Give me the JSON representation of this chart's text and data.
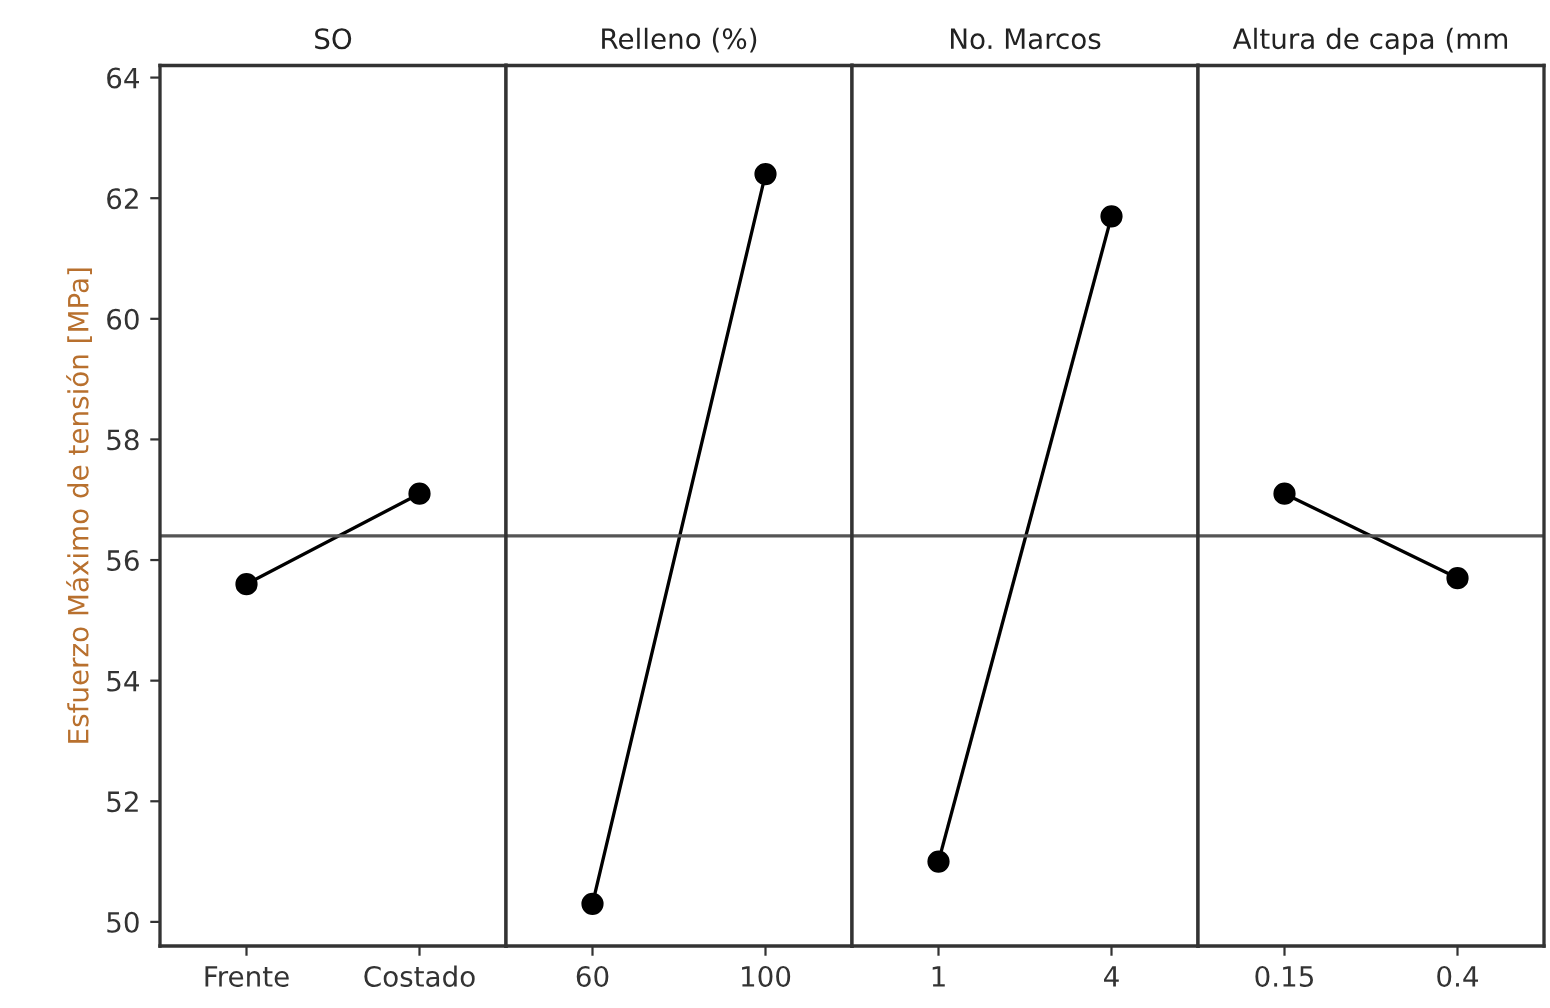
{
  "chart_data": [
    {
      "type": "line",
      "title": "SO",
      "ylabel": "Esfuerzo Máximo de tensión [MPa]",
      "categories": [
        "Frente",
        "Costado"
      ],
      "series": [
        {
          "color": "#000000",
          "values": [
            55.6,
            57.1
          ]
        }
      ],
      "ylim": [
        49.6,
        64.2
      ],
      "yticks": [
        50,
        52,
        54,
        56,
        58,
        60,
        62,
        64
      ],
      "ref_lines": [
        {
          "axis": "y",
          "value": 56.4,
          "color": "#555555"
        }
      ],
      "marker": "circle",
      "line_style": "solid",
      "grid": false,
      "legend": false
    },
    {
      "type": "line",
      "title": "Relleno (%)",
      "categories": [
        "60",
        "100"
      ],
      "series": [
        {
          "color": "#000000",
          "values": [
            50.3,
            62.4
          ]
        }
      ],
      "ylim": [
        49.6,
        64.2
      ],
      "tick_labels": "x",
      "ref_lines": [
        {
          "axis": "y",
          "value": 56.4,
          "color": "#555555"
        }
      ],
      "marker": "circle",
      "line_style": "solid",
      "grid": false,
      "legend": false
    },
    {
      "type": "line",
      "title": "No. Marcos",
      "categories": [
        "1",
        "4"
      ],
      "series": [
        {
          "color": "#000000",
          "values": [
            51.0,
            61.7
          ]
        }
      ],
      "ylim": [
        49.6,
        64.2
      ],
      "tick_labels": "x",
      "ref_lines": [
        {
          "axis": "y",
          "value": 56.4,
          "color": "#555555"
        }
      ],
      "marker": "circle",
      "line_style": "solid",
      "grid": false,
      "legend": false
    },
    {
      "type": "line",
      "title": "Altura de capa (mm",
      "categories": [
        "0.15",
        "0.4"
      ],
      "series": [
        {
          "color": "#000000",
          "values": [
            57.1,
            55.7
          ]
        }
      ],
      "ylim": [
        49.6,
        64.2
      ],
      "tick_labels": "x",
      "ref_lines": [
        {
          "axis": "y",
          "value": 56.4,
          "color": "#555555"
        }
      ],
      "marker": "circle",
      "line_style": "solid",
      "grid": false,
      "legend": false
    }
  ]
}
